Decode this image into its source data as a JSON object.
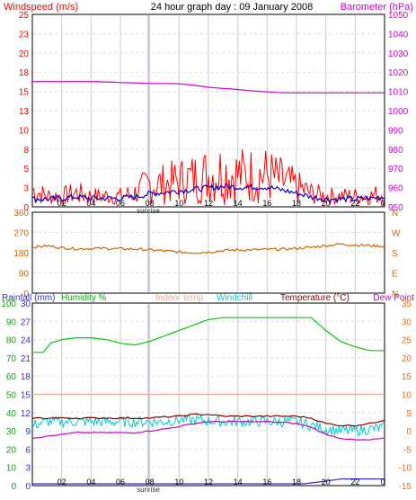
{
  "title": "24 hour graph day : 09 January 2008",
  "hour_labels": [
    "02",
    "04",
    "06",
    "08",
    "10",
    "12",
    "14",
    "16",
    "18",
    "20",
    "22"
  ],
  "sunrise_label": "sunrise",
  "chart_data": [
    {
      "id": "wind",
      "type": "line",
      "left_axis_label": "Windspeed (m/s)",
      "right_axis_label": "Barometer (hPa)",
      "left_ylim": [
        0,
        25
      ],
      "left_ticks": [
        "0",
        "3",
        "5",
        "8",
        "10",
        "13",
        "15",
        "18",
        "20",
        "23",
        "25"
      ],
      "right_ylim": [
        950,
        1050
      ],
      "right_ticks": [
        "950",
        "960",
        "970",
        "980",
        "990",
        "1000",
        "1010",
        "1020",
        "1030",
        "1040",
        "1050"
      ],
      "series": [
        {
          "name": "Windspeed (m/s)",
          "axis": "left",
          "style": "gust",
          "color": "#ff0000",
          "x": [
            0,
            1,
            2,
            3,
            4,
            5,
            6,
            7,
            8,
            9,
            10,
            11,
            12,
            13,
            14,
            15,
            16,
            17,
            18,
            19,
            20,
            21,
            22,
            23,
            24
          ],
          "values": [
            2.5,
            1.5,
            1.5,
            2.0,
            1.5,
            1.5,
            1.5,
            2.0,
            3.5,
            3.5,
            4.0,
            4.5,
            5.0,
            5.5,
            5.0,
            5.0,
            5.0,
            4.0,
            3.0,
            2.0,
            1.5,
            1.5,
            1.5,
            1.5,
            2.0
          ]
        },
        {
          "name": "Windspeed (m/s)",
          "axis": "left",
          "style": "avg",
          "color": "#0000cc",
          "x": [
            0,
            1,
            2,
            3,
            4,
            5,
            6,
            7,
            8,
            9,
            10,
            11,
            12,
            13,
            14,
            15,
            16,
            17,
            18,
            19,
            20,
            21,
            22,
            23,
            24
          ],
          "values": [
            0.8,
            0.8,
            0.9,
            1.1,
            0.9,
            0.9,
            0.9,
            1.1,
            1.5,
            1.7,
            1.9,
            2.1,
            2.3,
            2.5,
            2.4,
            2.4,
            2.4,
            2.0,
            1.6,
            1.1,
            0.8,
            0.8,
            0.8,
            0.9,
            1.1
          ]
        },
        {
          "name": "Barometer (hPa)",
          "axis": "right",
          "color": "#cc00cc",
          "x": [
            0,
            1,
            2,
            3,
            4,
            5,
            6,
            7,
            8,
            9,
            10,
            11,
            12,
            13,
            14,
            15,
            16,
            17,
            18,
            19,
            20,
            21,
            22,
            23,
            24
          ],
          "values": [
            1016,
            1016,
            1016,
            1016,
            1016,
            1015.8,
            1015.5,
            1015.3,
            1015,
            1015,
            1014.8,
            1014,
            1013,
            1012.3,
            1011.8,
            1011,
            1010.5,
            1010,
            1010,
            1010,
            1010,
            1010,
            1010,
            1010,
            1010
          ]
        }
      ]
    },
    {
      "id": "direction",
      "type": "line",
      "left_ylim": [
        0,
        360
      ],
      "left_ticks": [
        "0",
        "90",
        "180",
        "270",
        "360"
      ],
      "right_ticks": [
        "N",
        "E",
        "S",
        "W",
        "N"
      ],
      "series": [
        {
          "name": "Wind direction",
          "axis": "left",
          "color": "#cc6600",
          "x": [
            0,
            1,
            2,
            3,
            4,
            5,
            6,
            7,
            8,
            9,
            10,
            11,
            12,
            13,
            14,
            15,
            16,
            17,
            18,
            19,
            20,
            21,
            22,
            23,
            24
          ],
          "values": [
            205,
            212,
            203,
            198,
            200,
            200,
            198,
            197,
            193,
            188,
            183,
            180,
            183,
            190,
            193,
            193,
            195,
            196,
            200,
            205,
            213,
            220,
            216,
            213,
            210
          ]
        }
      ]
    },
    {
      "id": "temperature",
      "type": "line",
      "labels": [
        "Rainfall (mm)",
        "Humidity %",
        "Indoor temp",
        "Windchill",
        "Temperature (°C)",
        "Dew Point"
      ],
      "rain_ticks": [
        "0",
        "3",
        "6",
        "9",
        "12",
        "15",
        "18",
        "21",
        "24",
        "27",
        "30"
      ],
      "humidity_ticks": [
        "0",
        "10",
        "20",
        "30",
        "40",
        "50",
        "60",
        "70",
        "80",
        "90",
        "100"
      ],
      "humidity_ylim": [
        0,
        100
      ],
      "temp_ticks": [
        "-15",
        "-10",
        "-5",
        "0",
        "5",
        "10",
        "15",
        "20",
        "25",
        "30",
        "35"
      ],
      "temp_ylim": [
        -15,
        35
      ],
      "series": [
        {
          "name": "Humidity %",
          "axis": "humidity",
          "color": "#00cc00",
          "x": [
            0,
            0.8,
            1.2,
            2,
            3,
            4,
            5,
            6,
            7,
            8,
            9,
            10,
            11,
            12,
            13,
            14,
            15,
            16,
            17,
            18,
            19,
            20,
            21,
            22,
            23,
            24
          ],
          "values": [
            73,
            73,
            78,
            80,
            81,
            81,
            80,
            78,
            77,
            79,
            82,
            85,
            88,
            91,
            92,
            92,
            92,
            92,
            92,
            92,
            92,
            85,
            79,
            76,
            74,
            74
          ]
        },
        {
          "name": "Indoor temp",
          "axis": "temp",
          "color": "#f0a888",
          "x": [
            0,
            24
          ],
          "values": [
            10,
            10
          ]
        },
        {
          "name": "Windchill",
          "axis": "temp",
          "style": "noisy",
          "color": "#00cccc",
          "x": [
            0,
            1,
            2,
            3,
            4,
            5,
            6,
            7,
            8,
            9,
            10,
            11,
            12,
            13,
            14,
            15,
            16,
            17,
            18,
            19,
            20,
            21,
            22,
            23,
            24
          ],
          "values": [
            1.5,
            2.5,
            2.5,
            2.5,
            2.5,
            2.5,
            2.5,
            2.5,
            2.5,
            2.5,
            3,
            3,
            2.8,
            2.5,
            2.5,
            2.5,
            2.5,
            2.5,
            2.5,
            1.5,
            0.5,
            0,
            0,
            0.5,
            1
          ]
        },
        {
          "name": "Temperature (°C)",
          "axis": "temp",
          "color": "#800000",
          "x": [
            0,
            1,
            2,
            3,
            4,
            5,
            6,
            7,
            8,
            9,
            10,
            11,
            12,
            13,
            14,
            15,
            16,
            17,
            18,
            19,
            20,
            21,
            22,
            23,
            24
          ],
          "values": [
            3.5,
            3.5,
            3.5,
            3.5,
            3.5,
            3.5,
            3.5,
            3.5,
            3.5,
            3.8,
            4,
            4.5,
            4.5,
            4,
            4,
            4,
            4,
            4,
            4,
            3.5,
            2,
            1.5,
            1.5,
            2,
            3
          ]
        },
        {
          "name": "Dew Point",
          "axis": "temp",
          "color": "#cc00cc",
          "x": [
            0,
            1,
            2,
            3,
            4,
            5,
            6,
            7,
            8,
            9,
            10,
            11,
            12,
            13,
            14,
            15,
            16,
            17,
            18,
            19,
            20,
            21,
            22,
            23,
            24
          ],
          "values": [
            -2,
            -1.5,
            -1,
            -0.5,
            -0.5,
            -0.5,
            -0.5,
            -0.5,
            0,
            0.5,
            1.2,
            2,
            2.5,
            2.5,
            2.5,
            2.5,
            2.5,
            2.3,
            2,
            1,
            -1,
            -2,
            -2.5,
            -2.5,
            -2
          ]
        },
        {
          "name": "Rainfall (mm)",
          "axis": "rain",
          "color": "#3333cc",
          "x": [
            0,
            18.5,
            19.5,
            20.5,
            21,
            24
          ],
          "values": [
            0,
            0,
            0.3,
            0.6,
            0.8,
            0.8
          ]
        }
      ]
    }
  ],
  "colors": {
    "wind_label": "#ff0000",
    "baro_label": "#cc00cc",
    "dir_axis": "#cc6600",
    "rain_label": "#3333cc",
    "humidity_label": "#00aa00",
    "indoor_label": "#f0a888",
    "windchill_label": "#00cccc",
    "temp_label": "#800000",
    "dew_label": "#cc00cc"
  }
}
